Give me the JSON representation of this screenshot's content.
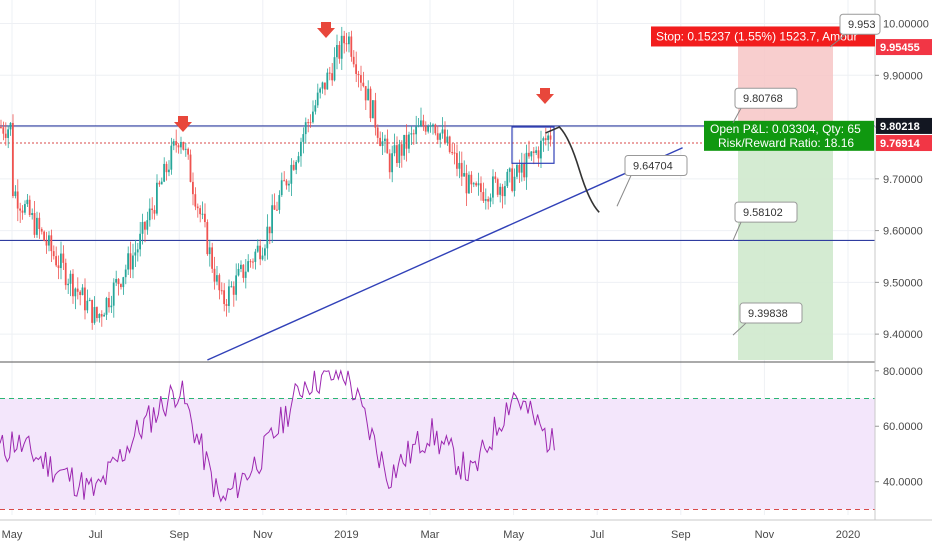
{
  "chart_data": [
    {
      "type": "candlestick",
      "title": "",
      "x_tick_labels": [
        "May",
        "Jul",
        "Sep",
        "Nov",
        "2019",
        "Mar",
        "May",
        "Jul",
        "Sep",
        "Nov",
        "2020"
      ],
      "y_tick_labels": [
        "10.00000",
        "9.90000",
        "9.80000",
        "9.70000",
        "9.60000",
        "9.50000",
        "9.40000"
      ],
      "ylim": [
        9.35,
        10.03
      ],
      "colors": {
        "up": "#26a69a",
        "down": "#ef5350"
      },
      "price_series_approx": [
        [
          "May 2018",
          9.68
        ],
        [
          "Jun 2018",
          9.55
        ],
        [
          "Jul 2018",
          9.43
        ],
        [
          "Aug 2018",
          9.57
        ],
        [
          "Sep 2018",
          9.79
        ],
        [
          "Oct 2018",
          9.46
        ],
        [
          "Nov 2018",
          9.58
        ],
        [
          "Dec 2018",
          9.8
        ],
        [
          "Jan 2019",
          9.98
        ],
        [
          "Feb 2019",
          9.73
        ],
        [
          "Mar 2019",
          9.82
        ],
        [
          "Apr 2019",
          9.67
        ],
        [
          "May 2019",
          9.7
        ],
        [
          "Jun 2019",
          9.8
        ]
      ],
      "projection_path": [
        [
          "Jun 2019",
          9.8
        ],
        [
          "Jul 2019",
          9.647
        ]
      ],
      "horizontal_levels": [
        9.80218,
        9.76914,
        9.58102
      ],
      "trendline": [
        [
          "Aug 2018",
          9.35
        ],
        [
          "Oct 2019",
          9.76
        ]
      ],
      "price_tags": [
        {
          "text": "9.80218",
          "color": "#131722"
        },
        {
          "text": "9.76914",
          "color": "#f23645"
        },
        {
          "text": "9.95455",
          "color": "#f23645"
        }
      ],
      "callouts": [
        "9.953",
        "9.80768",
        "9.64704",
        "9.58102",
        "9.39838"
      ],
      "position_labels": {
        "stop": "Stop: 0.15237 (1.55%) 1523.7, Amour",
        "pnl": "Open P&L: 0.03304, Qty: 65",
        "rr": "Risk/Reward Ratio: 18.16"
      }
    },
    {
      "type": "line",
      "title": "",
      "y_tick_labels": [
        "80.0000",
        "60.0000",
        "40.0000"
      ],
      "ylim": [
        28,
        81
      ],
      "reference_levels": [
        70,
        30
      ],
      "color": "#9c27b0",
      "values_approx": [
        [
          "May 2018",
          55
        ],
        [
          "Jun 2018",
          45
        ],
        [
          "Jul 2018",
          36
        ],
        [
          "Aug 2018",
          58
        ],
        [
          "Sep 2018",
          74
        ],
        [
          "Oct 2018",
          32
        ],
        [
          "Nov 2018",
          50
        ],
        [
          "Dec 2018",
          76
        ],
        [
          "Jan 2019",
          79
        ],
        [
          "Feb 2019",
          42
        ],
        [
          "Mar 2019",
          58
        ],
        [
          "Apr 2019",
          42
        ],
        [
          "May 2019",
          72
        ],
        [
          "Jun 2019",
          52
        ]
      ]
    }
  ]
}
